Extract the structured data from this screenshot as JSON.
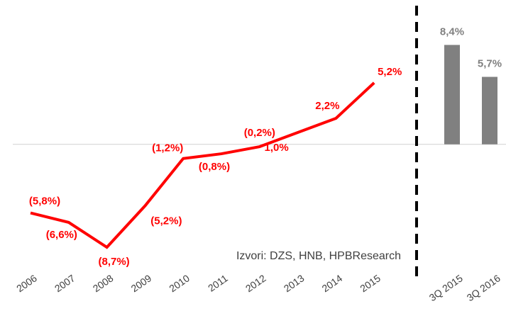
{
  "chart_data": [
    {
      "type": "line",
      "categories": [
        "2006",
        "2007",
        "2008",
        "2009",
        "2010",
        "2011",
        "2012",
        "2013",
        "2014",
        "2015"
      ],
      "values": [
        -5.8,
        -6.6,
        -8.7,
        -5.2,
        -1.2,
        -0.8,
        -0.2,
        1.0,
        2.2,
        5.2
      ],
      "value_labels": [
        "(5,8%)",
        "(6,6%)",
        "(8,7%)",
        "(5,2%)",
        "(1,2%)",
        "(0,8%)",
        "(0,2%)",
        "1,0%",
        "2,2%",
        "5,2%"
      ],
      "color": "#ff0000",
      "ylim": [
        -10,
        11
      ],
      "annotation": "Izvori:  DZS,  HNB,  HPBResearch"
    },
    {
      "type": "bar",
      "categories": [
        "3Q 2015",
        "3Q 2016"
      ],
      "values": [
        8.4,
        5.7
      ],
      "value_labels": [
        "8,4%",
        "5,7%"
      ],
      "color": "#808080",
      "ylim": [
        -10,
        11
      ]
    }
  ]
}
